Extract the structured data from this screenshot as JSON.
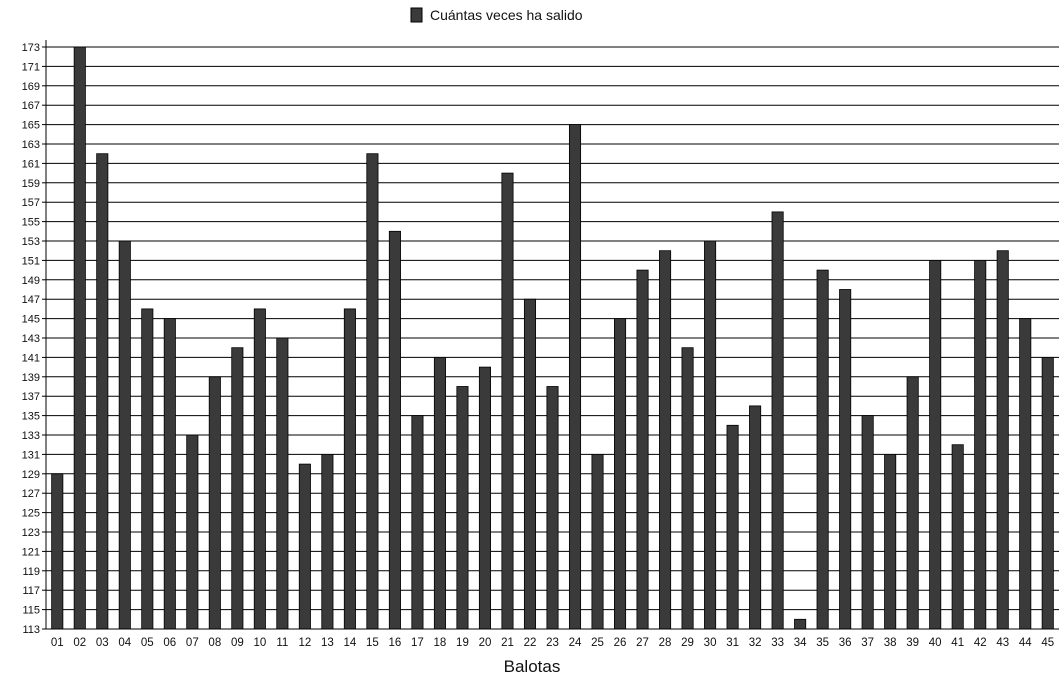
{
  "chart_data": {
    "type": "bar",
    "title": "",
    "xlabel": "Balotas",
    "ylabel": "",
    "ylim": [
      113,
      173
    ],
    "y_tick_step": 2,
    "grid": true,
    "legend": {
      "placement": "top",
      "entries": [
        "Cuántas veces ha salido"
      ]
    },
    "categories": [
      "01",
      "02",
      "03",
      "04",
      "05",
      "06",
      "07",
      "08",
      "09",
      "10",
      "11",
      "12",
      "13",
      "14",
      "15",
      "16",
      "17",
      "18",
      "19",
      "20",
      "21",
      "22",
      "23",
      "24",
      "25",
      "26",
      "27",
      "28",
      "29",
      "30",
      "31",
      "32",
      "33",
      "34",
      "35",
      "36",
      "37",
      "38",
      "39",
      "40",
      "41",
      "42",
      "43",
      "44",
      "45"
    ],
    "series": [
      {
        "name": "Cuántas veces ha salido",
        "color": "#3a3a3a",
        "values": [
          129,
          173,
          162,
          153,
          146,
          145,
          133,
          139,
          142,
          146,
          143,
          130,
          131,
          146,
          162,
          154,
          135,
          141,
          138,
          140,
          160,
          147,
          138,
          165,
          131,
          145,
          150,
          152,
          142,
          153,
          134,
          136,
          156,
          114,
          150,
          148,
          135,
          131,
          139,
          151,
          132,
          151,
          152,
          145,
          141
        ]
      }
    ]
  }
}
